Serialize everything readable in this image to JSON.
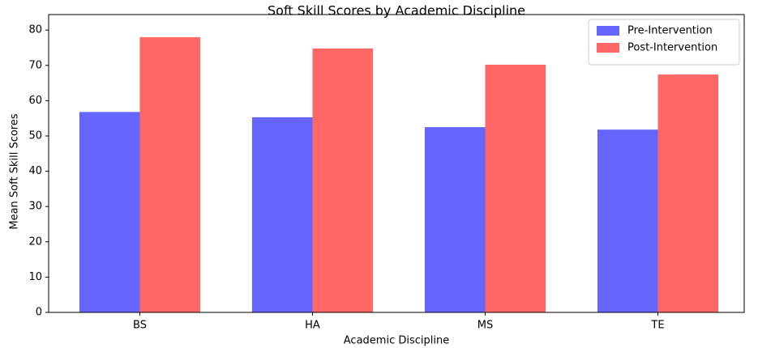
{
  "chart_data": {
    "type": "grouped_bar",
    "title": "Soft Skill Scores by Academic Discipline",
    "x_label": "Academic Discipline",
    "y_label": "Mean Soft Skill Scores",
    "categories": [
      "BS",
      "HA",
      "MS",
      "TE"
    ],
    "series": [
      {
        "name": "Pre-Intervention",
        "color": "#6666ff",
        "values": [
          56.8,
          55.3,
          52.5,
          51.8
        ]
      },
      {
        "name": "Post-Intervention",
        "color": "#ff6666",
        "values": [
          78.0,
          74.8,
          70.2,
          67.4
        ]
      }
    ],
    "ylim": [
      0,
      84.4
    ],
    "yticks": [
      0,
      10,
      20,
      30,
      40,
      50,
      60,
      70,
      80
    ],
    "grid": false,
    "legend": "upper-right"
  }
}
